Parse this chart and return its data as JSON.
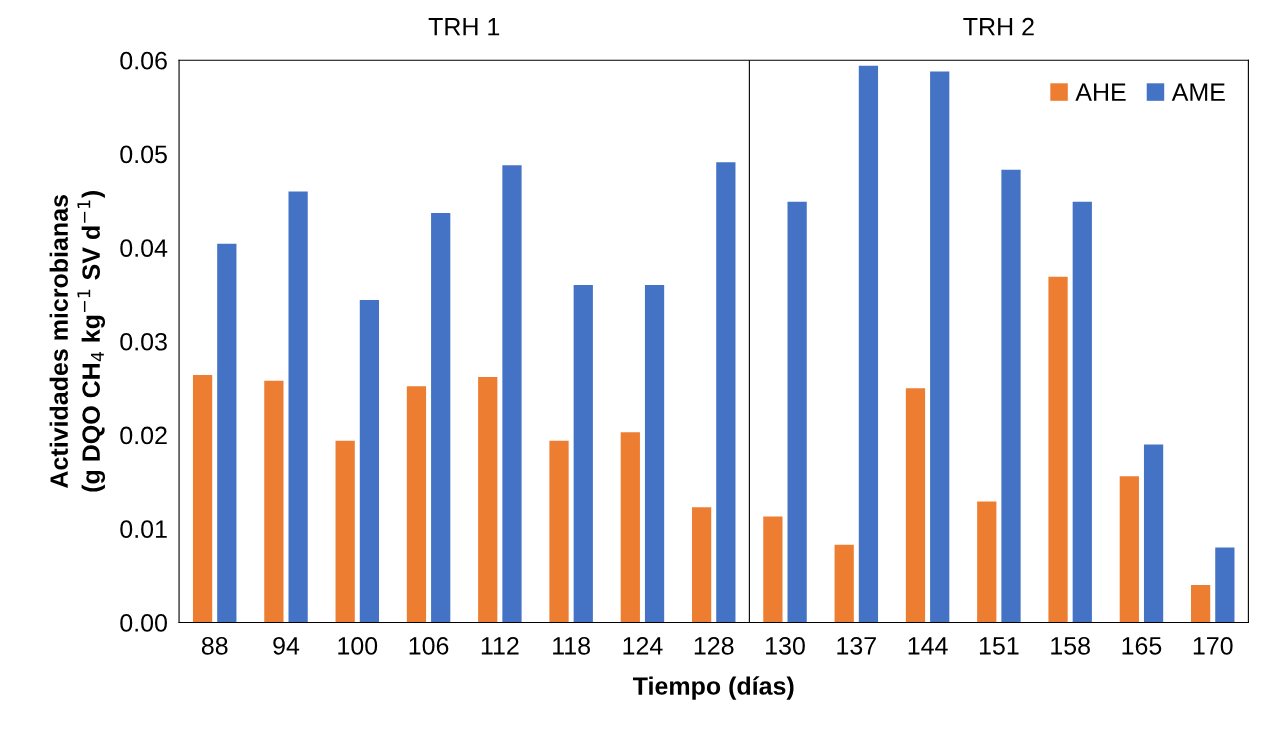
{
  "chart_data": {
    "type": "bar",
    "xlabel": "Tiempo (días)",
    "ylabel": "Actividades microbianas\n(g DQO CH$_{4}$ kg$^{−1}$ SV d$^{−1}$)",
    "categories": [
      "88",
      "94",
      "100",
      "106",
      "112",
      "118",
      "124",
      "128",
      "130",
      "137",
      "144",
      "151",
      "158",
      "165",
      "170"
    ],
    "series": [
      {
        "name": "AHE",
        "color": "#ed7d31",
        "values": [
          0.0264,
          0.0258,
          0.0194,
          0.0252,
          0.0262,
          0.0194,
          0.0203,
          0.0123,
          0.0113,
          0.0083,
          0.025,
          0.0129,
          0.0369,
          0.0156,
          0.004
        ]
      },
      {
        "name": "AME",
        "color": "#4472c4",
        "values": [
          0.0404,
          0.046,
          0.0344,
          0.0437,
          0.0488,
          0.036,
          0.036,
          0.0491,
          0.0449,
          0.0594,
          0.0588,
          0.0483,
          0.0449,
          0.019,
          0.008
        ]
      }
    ],
    "ylim": [
      0,
      0.06
    ],
    "yticks": [
      {
        "value": 0,
        "label": "0.00"
      },
      {
        "value": 0.01,
        "label": "0.01"
      },
      {
        "value": 0.02,
        "label": "0.02"
      },
      {
        "value": 0.03,
        "label": "0.03"
      },
      {
        "value": 0.04,
        "label": "0.04"
      },
      {
        "value": 0.05,
        "label": "0.05"
      },
      {
        "value": 0.06,
        "label": "0.06"
      }
    ],
    "annotations": [
      "TRH 1",
      "TRH 2"
    ],
    "legend": "top right",
    "grid": false
  }
}
